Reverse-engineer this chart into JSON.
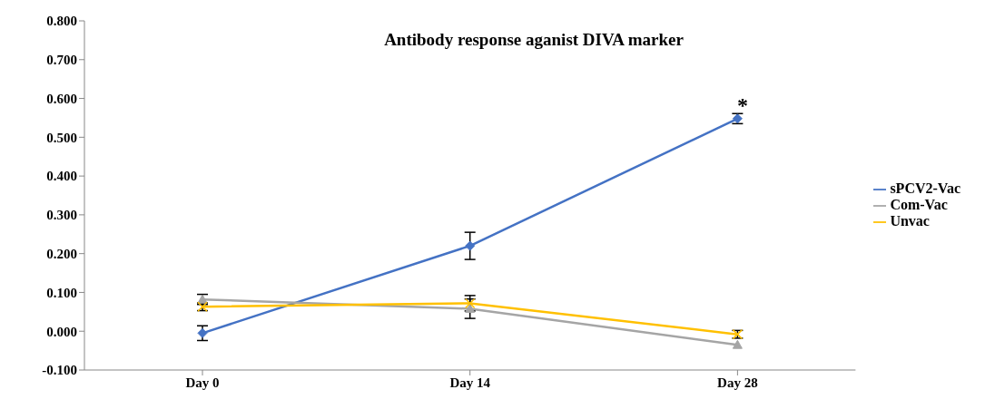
{
  "chart_data": {
    "type": "line",
    "title": "Antibody response aganist DIVA marker",
    "categories": [
      "Day 0",
      "Day 14",
      "Day 28"
    ],
    "series": [
      {
        "name": "sPCV2-Vac",
        "color": "#4472c4",
        "marker": "diamond",
        "values": [
          -0.005,
          0.22,
          0.548
        ],
        "errors": [
          0.019,
          0.035,
          0.013
        ]
      },
      {
        "name": "Com-Vac",
        "color": "#a5a5a5",
        "marker": "triangle",
        "values": [
          0.082,
          0.058,
          -0.035
        ],
        "errors": [
          0.013,
          0.025,
          null
        ]
      },
      {
        "name": "Unvac",
        "color": "#ffc000",
        "marker": "cross",
        "values": [
          0.063,
          0.072,
          -0.008
        ],
        "errors": [
          0.01,
          0.02,
          0.01
        ]
      }
    ],
    "ylim": [
      -0.1,
      0.8
    ],
    "yticks": [
      {
        "value": -0.1,
        "label": "-0.100"
      },
      {
        "value": 0,
        "label": "0.000"
      },
      {
        "value": 0.1,
        "label": "0.100"
      },
      {
        "value": 0.2,
        "label": "0.200"
      },
      {
        "value": 0.3,
        "label": "0.300"
      },
      {
        "value": 0.4,
        "label": "0.400"
      },
      {
        "value": 0.5,
        "label": "0.500"
      },
      {
        "value": 0.6,
        "label": "0.600"
      },
      {
        "value": 0.7,
        "label": "0.700"
      },
      {
        "value": 0.8,
        "label": "0.800"
      }
    ],
    "annotations": [
      "*"
    ],
    "grid": false,
    "legend": "right"
  }
}
